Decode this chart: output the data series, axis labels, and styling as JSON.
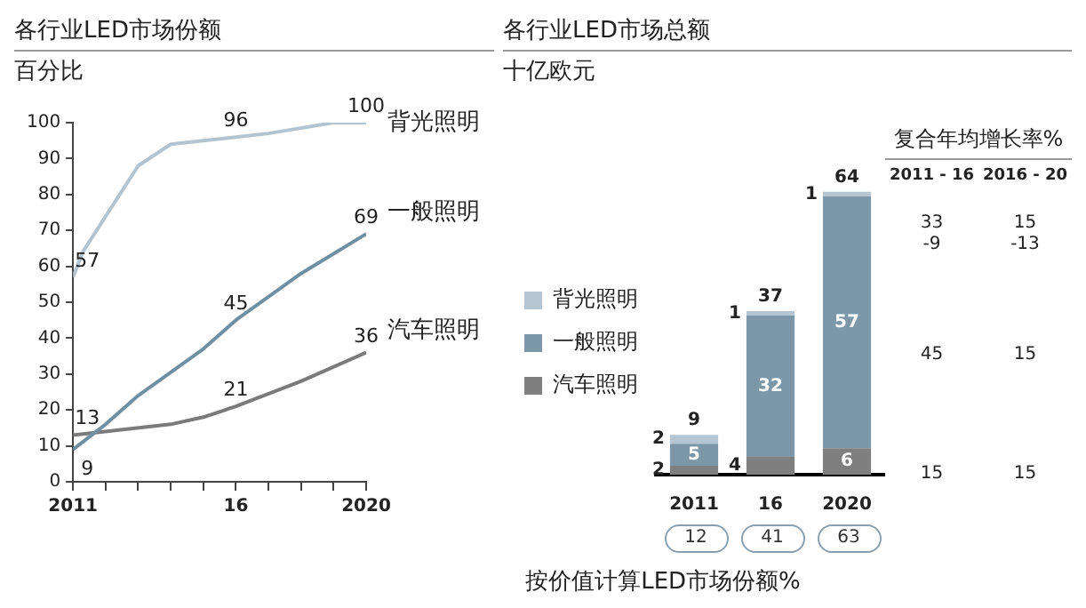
{
  "chart_data": [
    {
      "type": "line",
      "title": "各行业LED市场份额",
      "subtitle": "百分比",
      "xlim": [
        2011,
        2020
      ],
      "xticks": [
        {
          "value": 2011,
          "label": "2011"
        },
        {
          "value": 2012,
          "label": null
        },
        {
          "value": 2013,
          "label": null
        },
        {
          "value": 2014,
          "label": null
        },
        {
          "value": 2015,
          "label": null
        },
        {
          "value": 2016,
          "label": "16"
        },
        {
          "value": 2017,
          "label": null
        },
        {
          "value": 2018,
          "label": null
        },
        {
          "value": 2019,
          "label": null
        },
        {
          "value": 2020,
          "label": "2020"
        }
      ],
      "ylim": [
        0,
        100
      ],
      "yticks": [
        0,
        10,
        20,
        30,
        40,
        50,
        60,
        70,
        80,
        90,
        100
      ],
      "grid": false,
      "legend": false,
      "marker": "none",
      "series": [
        {
          "name": "背光照明",
          "color": "#b3c3cf",
          "x": [
            2011,
            2011.3,
            2013,
            2014,
            2016,
            2017,
            2019,
            2020
          ],
          "values": [
            57,
            64,
            88,
            94,
            96,
            97,
            100,
            100
          ],
          "value_labels": [
            "57",
            null,
            null,
            null,
            "96",
            null,
            null,
            "100"
          ]
        },
        {
          "name": "一般照明",
          "color": "#6f8fa3",
          "x": [
            2011,
            2012,
            2013,
            2015,
            2016,
            2018,
            2020
          ],
          "values": [
            9,
            16,
            24,
            37,
            45,
            58,
            69
          ],
          "value_labels": [
            "9",
            null,
            null,
            null,
            "45",
            null,
            "69"
          ]
        },
        {
          "name": "汽车照明",
          "color": "#7a7a7a",
          "x": [
            2011,
            2014,
            2015,
            2016,
            2018,
            2020
          ],
          "values": [
            13,
            16,
            18,
            21,
            28,
            36
          ],
          "value_labels": [
            "13",
            null,
            null,
            "21",
            null,
            "36"
          ]
        }
      ]
    },
    {
      "type": "bar",
      "title": "各行业LED市场总额",
      "subtitle": "十亿欧元",
      "xlabel": "按价值计算LED市场份额%",
      "categories": [
        "2011",
        "16",
        "2020"
      ],
      "stacked": true,
      "data_labels": true,
      "legend": "left",
      "totals": [
        "9",
        "37",
        "64"
      ],
      "annotations": [
        "12",
        "41",
        "63"
      ],
      "series": [
        {
          "name": "汽车照明",
          "color": "#7f7f7f",
          "values": [
            2,
            4,
            6
          ]
        },
        {
          "name": "一般照明",
          "color": "#7b97a8",
          "values": [
            5,
            32,
            57
          ]
        },
        {
          "name": "背光照明",
          "color": "#b5c5d1",
          "values": [
            2,
            1,
            1
          ]
        }
      ]
    },
    {
      "type": "other",
      "title": "复合年均增长率%",
      "annotations": [
        "2011 - 16",
        "2016 - 20",
        "33",
        "15",
        "-9",
        "-13",
        "45",
        "15",
        "15",
        "15"
      ]
    }
  ]
}
